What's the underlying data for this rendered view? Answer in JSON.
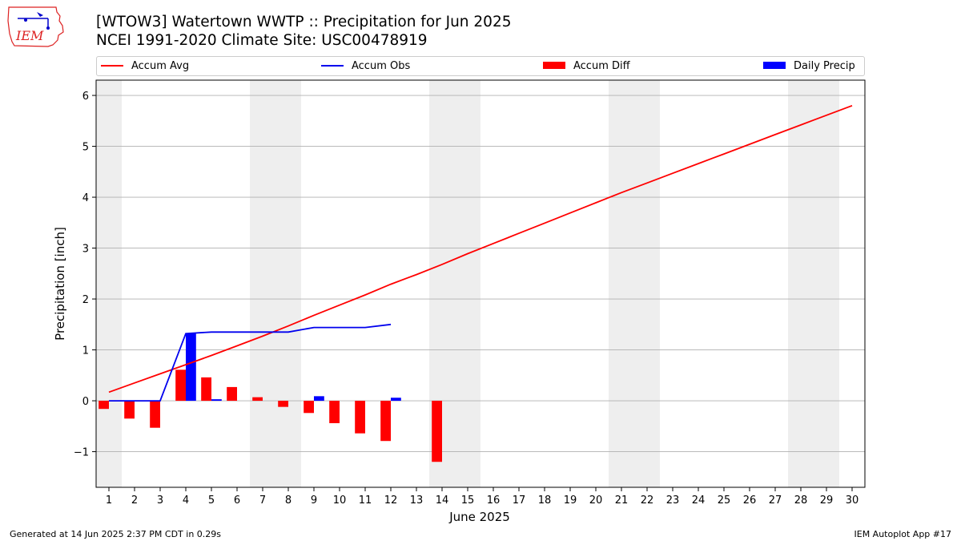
{
  "header": {
    "title_line1": "[WTOW3] Watertown WWTP :: Precipitation for Jun 2025",
    "title_line2": "NCEI 1991-2020 Climate Site: USC00478919"
  },
  "logo": {
    "text": "IEM",
    "icon": "iem-iowa-logo-icon"
  },
  "footer": {
    "generated": "Generated at 14 Jun 2025 2:37 PM CDT in 0.29s",
    "app": "IEM Autoplot App #17"
  },
  "colors": {
    "accum_avg": "#ff0000",
    "accum_obs": "#0000ee",
    "accum_diff": "#ff0000",
    "daily_precip": "#0000ff",
    "weekend_shade": "#eeeeee",
    "grid": "#b0b0b0"
  },
  "chart_data": {
    "type": "bar",
    "xlabel": "June 2025",
    "ylabel": "Precipitation [inch]",
    "ylim": [
      -1.7,
      6.3
    ],
    "xlim": [
      0.5,
      30.5
    ],
    "yticks": [
      -1,
      0,
      1,
      2,
      3,
      4,
      5,
      6
    ],
    "ytick_labels": [
      "−1",
      "0",
      "1",
      "2",
      "3",
      "4",
      "5",
      "6"
    ],
    "days": [
      1,
      2,
      3,
      4,
      5,
      6,
      7,
      8,
      9,
      10,
      11,
      12,
      13,
      14,
      15,
      16,
      17,
      18,
      19,
      20,
      21,
      22,
      23,
      24,
      25,
      26,
      27,
      28,
      29,
      30
    ],
    "grid": "horizontal",
    "legend_position": "top",
    "weekend_spans": [
      [
        0.5,
        1.5
      ],
      [
        6.5,
        8.5
      ],
      [
        13.5,
        15.5
      ],
      [
        20.5,
        22.5
      ],
      [
        27.5,
        29.5
      ]
    ],
    "series": [
      {
        "name": "Accum Avg",
        "kind": "line",
        "x": [
          1,
          2,
          3,
          4,
          5,
          6,
          7,
          8,
          9,
          10,
          11,
          12,
          13,
          14,
          15,
          16,
          17,
          18,
          19,
          20,
          21,
          22,
          23,
          24,
          25,
          26,
          27,
          28,
          29,
          30
        ],
        "values": [
          0.17,
          0.35,
          0.53,
          0.71,
          0.89,
          1.08,
          1.27,
          1.47,
          1.68,
          1.88,
          2.08,
          2.29,
          2.48,
          2.68,
          2.89,
          3.09,
          3.29,
          3.49,
          3.69,
          3.89,
          4.09,
          4.28,
          4.47,
          4.66,
          4.85,
          5.04,
          5.23,
          5.42,
          5.61,
          5.8
        ]
      },
      {
        "name": "Accum Obs",
        "kind": "line",
        "x": [
          1,
          2,
          3,
          4,
          5,
          6,
          7,
          8,
          9,
          10,
          11,
          12
        ],
        "values": [
          0.0,
          0.0,
          0.0,
          1.32,
          1.35,
          1.35,
          1.35,
          1.35,
          1.44,
          1.44,
          1.44,
          1.5
        ]
      },
      {
        "name": "Accum Diff",
        "kind": "bar",
        "x": [
          1,
          2,
          3,
          4,
          5,
          6,
          7,
          8,
          9,
          10,
          11,
          12,
          14
        ],
        "values": [
          -0.16,
          -0.35,
          -0.53,
          0.61,
          0.46,
          0.27,
          0.07,
          -0.12,
          -0.24,
          -0.44,
          -0.64,
          -0.79,
          -1.2
        ]
      },
      {
        "name": "Daily Precip",
        "kind": "bar",
        "x": [
          1,
          2,
          3,
          4,
          5,
          6,
          7,
          8,
          9,
          10,
          11,
          12
        ],
        "values": [
          0.0,
          0.0,
          0.0,
          1.32,
          0.03,
          0.0,
          0.0,
          0.0,
          0.09,
          0.0,
          0.0,
          0.06
        ]
      }
    ]
  }
}
